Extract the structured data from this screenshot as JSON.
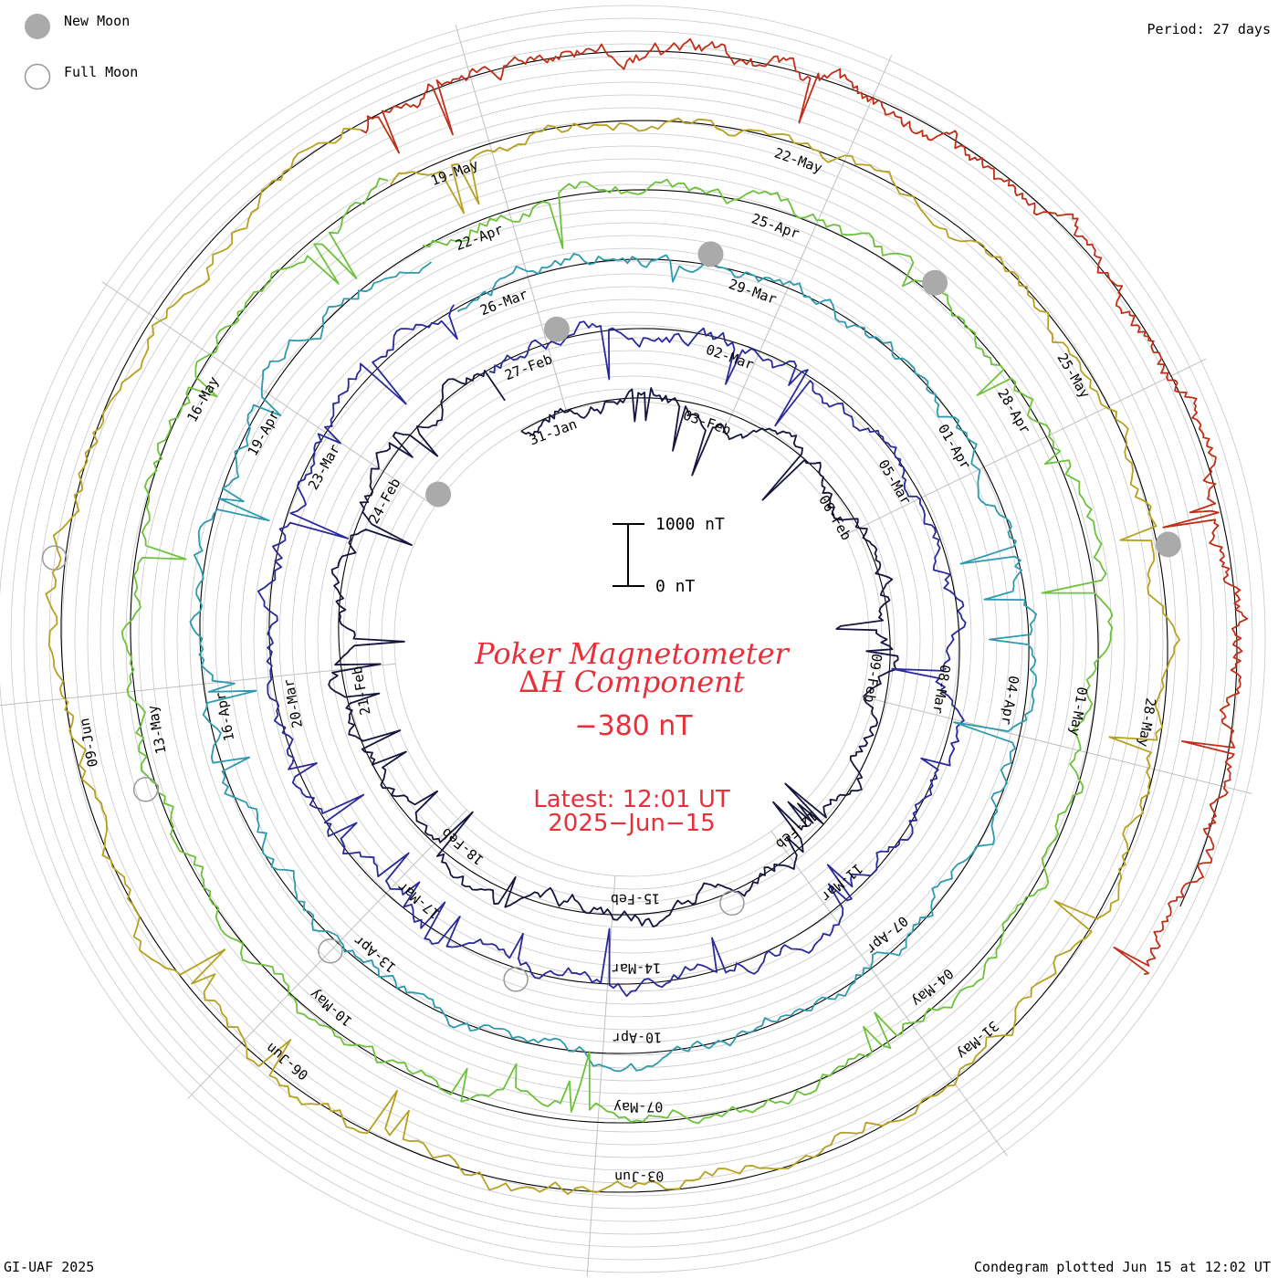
{
  "legend": {
    "new_moon": "New Moon",
    "full_moon": "Full Moon"
  },
  "period": "Period: 27 days",
  "credit": "GI-UAF 2025",
  "plotted": "Condegram plotted Jun 15 at 12:02 UT",
  "center": {
    "title_line1": "Poker Magnetometer",
    "title_line2": "∆H Component",
    "current_value": "−380 nT",
    "latest_line1": "Latest: 12:01 UT",
    "latest_line2": "2025−Jun−15",
    "scale_top": "1000 nT",
    "scale_bottom": "0 nT"
  },
  "colors": {
    "title": "#e8303a",
    "moon_fill": "#aaaaaa",
    "grid": "#c8c8c8",
    "spoke": "#c0c0c0",
    "ring": "#000000"
  },
  "chart_data": {
    "type": "condegram-spiral",
    "period_days": 27,
    "units": "nT",
    "scale_bar_nT": [
      0,
      1000
    ],
    "cycles": [
      {
        "color": "#151540",
        "dates": [
          "31-Jan",
          "03-Feb",
          "06-Feb",
          "09-Feb",
          "12-Feb",
          "15-Feb",
          "18-Feb",
          "21-Feb",
          "24-Feb"
        ]
      },
      {
        "color": "#2a2a9a",
        "dates": [
          "27-Feb",
          "02-Mar",
          "05-Mar",
          "08-Mar",
          "11-Mar",
          "14-Mar",
          "17-Mar",
          "20-Mar",
          "23-Mar"
        ]
      },
      {
        "color": "#2e9ab0",
        "dates": [
          "26-Mar",
          "29-Mar",
          "01-Apr",
          "04-Apr",
          "07-Apr",
          "10-Apr",
          "13-Apr",
          "16-Apr",
          "19-Apr"
        ]
      },
      {
        "color": "#6cc23a",
        "dates": [
          "22-Apr",
          "25-Apr",
          "28-Apr",
          "01-May",
          "04-May",
          "07-May",
          "10-May",
          "13-May",
          "16-May"
        ]
      },
      {
        "color": "#b8a020",
        "dates": [
          "19-May",
          "22-May",
          "25-May",
          "28-May",
          "31-May",
          "03-Jun",
          "06-Jun",
          "09-Jun"
        ]
      },
      {
        "color": "#c03018",
        "dates": []
      }
    ],
    "moon_markers": [
      {
        "phase": "new",
        "date": "29-Jan"
      },
      {
        "phase": "new",
        "date": "28-Feb"
      },
      {
        "phase": "new",
        "date": "29-Mar"
      },
      {
        "phase": "new",
        "date": "27-Apr"
      },
      {
        "phase": "new",
        "date": "27-May"
      },
      {
        "phase": "full",
        "date": "12-Feb"
      },
      {
        "phase": "full",
        "date": "14-Mar"
      },
      {
        "phase": "full",
        "date": "13-Apr"
      },
      {
        "phase": "full",
        "date": "12-May"
      },
      {
        "phase": "full",
        "date": "11-Jun"
      }
    ]
  }
}
